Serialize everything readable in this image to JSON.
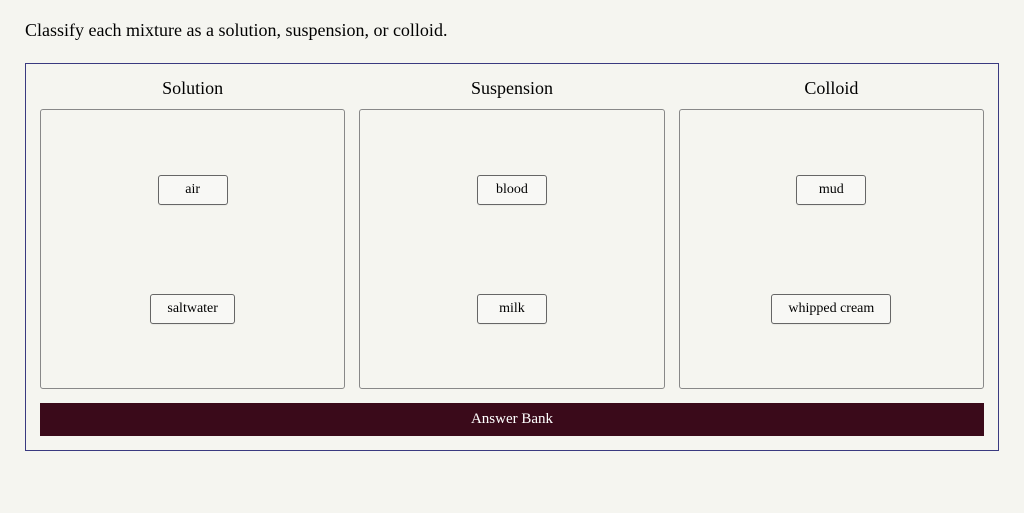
{
  "prompt": "Classify each mixture as a solution, suspension, or colloid.",
  "colors": {
    "container_border": "#3a3a80",
    "zone_border": "#888888",
    "item_border": "#666666",
    "item_bg": "#f8f8f5",
    "page_bg": "#f5f5f0",
    "bank_bg": "#3a0a1a",
    "bank_text": "#ffffff",
    "text": "#000000"
  },
  "typography": {
    "prompt_fontsize": 18,
    "zone_title_fontsize": 18,
    "item_fontsize": 14,
    "bank_fontsize": 15,
    "font_family": "Georgia, Times New Roman, serif"
  },
  "zones": [
    {
      "title": "Solution",
      "items": [
        "air",
        "saltwater"
      ]
    },
    {
      "title": "Suspension",
      "items": [
        "blood",
        "milk"
      ]
    },
    {
      "title": "Colloid",
      "items": [
        "mud",
        "whipped cream"
      ]
    }
  ],
  "answer_bank_label": "Answer Bank"
}
